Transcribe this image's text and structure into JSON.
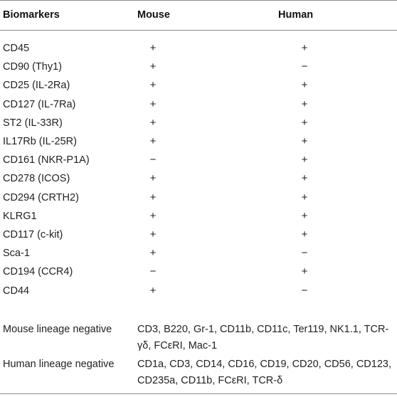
{
  "headers": {
    "biomarkers": "Biomarkers",
    "mouse": "Mouse",
    "human": "Human"
  },
  "rows": [
    {
      "marker": "CD45",
      "mouse": "+",
      "human": "+"
    },
    {
      "marker": "CD90 (Thy1)",
      "mouse": "+",
      "human": "−"
    },
    {
      "marker": "CD25 (IL-2Ra)",
      "mouse": "+",
      "human": "+"
    },
    {
      "marker": "CD127 (IL-7Ra)",
      "mouse": "+",
      "human": "+"
    },
    {
      "marker": "ST2 (IL-33R)",
      "mouse": "+",
      "human": "+"
    },
    {
      "marker": "IL17Rb (IL-25R)",
      "mouse": "+",
      "human": "+"
    },
    {
      "marker": "CD161 (NKR-P1A)",
      "mouse": "−",
      "human": "+"
    },
    {
      "marker": "CD278 (ICOS)",
      "mouse": "+",
      "human": "+"
    },
    {
      "marker": "CD294 (CRTH2)",
      "mouse": "+",
      "human": "+"
    },
    {
      "marker": "KLRG1",
      "mouse": "+",
      "human": "+"
    },
    {
      "marker": "CD117 (c-kit)",
      "mouse": "+",
      "human": "+"
    },
    {
      "marker": "Sca-1",
      "mouse": "+",
      "human": "−"
    },
    {
      "marker": "CD194 (CCR4)",
      "mouse": "−",
      "human": "+"
    },
    {
      "marker": "CD44",
      "mouse": "+",
      "human": "−"
    }
  ],
  "lineage": [
    {
      "label": "Mouse lineage negative",
      "value": "CD3, B220, Gr-1, CD11b, CD11c, Ter119, NK1.1, TCR-γδ, FCεRI, Mac-1"
    },
    {
      "label": "Human lineage negative",
      "value": "CD1a, CD3, CD14, CD16, CD19, CD20, CD56, CD123, CD235a, CD11b, FCεRI, TCR-δ"
    }
  ]
}
